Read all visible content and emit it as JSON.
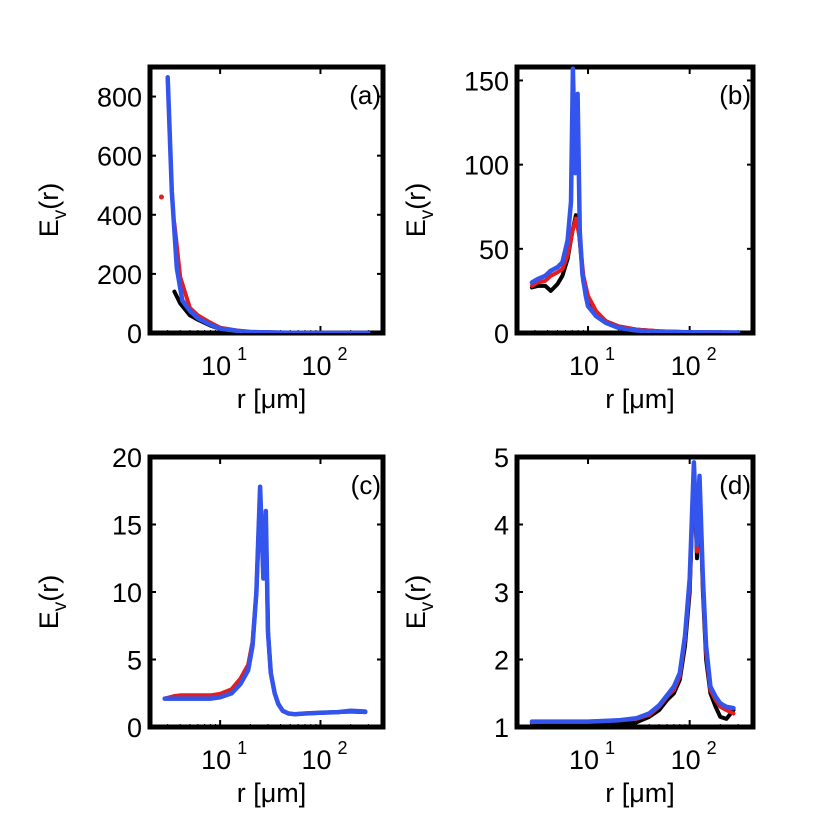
{
  "chart_data": [
    {
      "id": "a",
      "type": "line",
      "panel_label": "(a)",
      "xlabel": "r [μm]",
      "ylabel": "E_v(r)",
      "xscale": "log",
      "xlim": [
        2.0,
        420
      ],
      "ylim": [
        0,
        900
      ],
      "yticks": [
        0,
        200,
        400,
        600,
        800
      ],
      "ytick_labels": [
        "0",
        "200",
        "400",
        "600",
        "800"
      ],
      "xticks": [
        10,
        100
      ],
      "xtick_labels": [
        {
          "base": "10",
          "exp": "1"
        },
        {
          "base": "10",
          "exp": "2"
        }
      ],
      "series": [
        {
          "name": "black",
          "color": "#000000",
          "x": [
            3.5,
            4,
            5,
            6,
            8,
            10,
            15,
            20,
            50,
            100,
            300
          ],
          "y": [
            140,
            100,
            60,
            45,
            25,
            14,
            6,
            3,
            1,
            0.5,
            0.3
          ]
        },
        {
          "name": "red",
          "color": "#e81c1c",
          "x": [
            3.5,
            4,
            5,
            6,
            8,
            10,
            15,
            20,
            50,
            100,
            300
          ],
          "y": [
            370,
            190,
            85,
            60,
            35,
            18,
            8,
            4,
            1,
            0.5,
            0.3
          ]
        },
        {
          "name": "blue",
          "color": "#3355ee",
          "x": [
            3,
            3.3,
            3.7,
            4.2,
            5,
            6,
            8,
            10,
            15,
            20,
            50,
            100,
            300
          ],
          "y": [
            865,
            480,
            220,
            110,
            75,
            50,
            28,
            15,
            7,
            3,
            1,
            0.5,
            0.3
          ]
        }
      ],
      "points": [
        {
          "color": "#e81c1c",
          "x": 2.6,
          "y": 460
        }
      ]
    },
    {
      "id": "b",
      "type": "line",
      "panel_label": "(b)",
      "xlabel": "r [μm]",
      "ylabel": "E_v(r)",
      "xscale": "log",
      "xlim": [
        2.0,
        420
      ],
      "ylim": [
        0,
        158
      ],
      "yticks": [
        0,
        50,
        100,
        150
      ],
      "ytick_labels": [
        "0",
        "50",
        "100",
        "150"
      ],
      "xticks": [
        10,
        100
      ],
      "xtick_labels": [
        {
          "base": "10",
          "exp": "1"
        },
        {
          "base": "10",
          "exp": "2"
        }
      ],
      "series": [
        {
          "name": "black",
          "color": "#000000",
          "x": [
            2.8,
            3.2,
            3.8,
            4.3,
            5,
            5.6,
            6.3,
            7,
            7.6,
            8.2,
            9,
            10,
            12,
            15,
            20,
            30,
            50,
            100,
            300
          ],
          "y": [
            27,
            28,
            28,
            25,
            29,
            34,
            44,
            60,
            70,
            58,
            30,
            20,
            12,
            7,
            4,
            2,
            1,
            0.5,
            0.3
          ]
        },
        {
          "name": "red",
          "color": "#e81c1c",
          "x": [
            2.8,
            3.2,
            3.8,
            4.3,
            5,
            5.6,
            6.3,
            7,
            7.6,
            8.2,
            9,
            10,
            12,
            15,
            20,
            30,
            50,
            100,
            300
          ],
          "y": [
            28,
            30,
            31,
            34,
            36,
            38,
            46,
            60,
            68,
            58,
            34,
            22,
            13,
            7,
            4,
            2,
            1,
            0.5,
            0.3
          ]
        },
        {
          "name": "blue",
          "color": "#3355ee",
          "x": [
            2.8,
            3.2,
            3.8,
            4.3,
            5,
            5.6,
            6.3,
            6.8,
            7.1,
            7.5,
            7.9,
            8.3,
            8.8,
            9.5,
            10,
            12,
            15,
            20,
            30,
            50,
            100,
            300
          ],
          "y": [
            30,
            32,
            34,
            37,
            39,
            42,
            55,
            78,
            157,
            95,
            142,
            60,
            35,
            22,
            16,
            10,
            6,
            3,
            1.5,
            0.8,
            0.4,
            0.3
          ]
        }
      ]
    },
    {
      "id": "c",
      "type": "line",
      "panel_label": "(c)",
      "xlabel": "r [μm]",
      "ylabel": "E_v(r)",
      "xscale": "log",
      "xlim": [
        2.0,
        420
      ],
      "ylim": [
        0,
        20
      ],
      "yticks": [
        0,
        5,
        10,
        15,
        20
      ],
      "ytick_labels": [
        "0",
        "5",
        "10",
        "15",
        "20"
      ],
      "xticks": [
        10,
        100
      ],
      "xtick_labels": [
        {
          "base": "10",
          "exp": "1"
        },
        {
          "base": "10",
          "exp": "2"
        }
      ],
      "series": [
        {
          "name": "black",
          "color": "#000000",
          "x": [
            2.8,
            4,
            6,
            8,
            10,
            13,
            16,
            19,
            21,
            23,
            25,
            27,
            28.5,
            30,
            32,
            35,
            38,
            42,
            48,
            55,
            70,
            100,
            150,
            200,
            280
          ],
          "y": [
            2.1,
            2.1,
            2.1,
            2.1,
            2.2,
            2.5,
            3.2,
            4.2,
            6,
            10,
            17.5,
            11,
            15.8,
            7,
            4,
            2.5,
            1.7,
            1.2,
            1.0,
            0.95,
            1.0,
            1.05,
            1.1,
            1.15,
            1.1
          ]
        },
        {
          "name": "red",
          "color": "#e81c1c",
          "x": [
            2.8,
            3.5,
            4,
            6,
            8,
            10,
            13,
            16,
            19,
            21,
            23,
            25,
            27,
            28.5,
            30,
            32,
            35,
            38,
            42,
            48,
            55,
            70,
            100,
            150,
            200,
            280
          ],
          "y": [
            2.1,
            2.3,
            2.35,
            2.35,
            2.35,
            2.45,
            2.8,
            3.6,
            4.6,
            6.3,
            10,
            17.5,
            11,
            15.8,
            7,
            4,
            2.5,
            1.7,
            1.2,
            1.0,
            0.95,
            1.0,
            1.05,
            1.1,
            1.15,
            1.1
          ]
        },
        {
          "name": "blue",
          "color": "#3355ee",
          "x": [
            2.8,
            4,
            6,
            8,
            10,
            13,
            16,
            19,
            21,
            23,
            25,
            27,
            28.5,
            30,
            32,
            35,
            38,
            42,
            48,
            55,
            70,
            100,
            150,
            200,
            280
          ],
          "y": [
            2.1,
            2.1,
            2.1,
            2.1,
            2.2,
            2.5,
            3.2,
            4.2,
            6,
            10,
            17.8,
            11,
            16.0,
            7,
            4,
            2.5,
            1.7,
            1.2,
            1.0,
            0.95,
            1.0,
            1.05,
            1.1,
            1.2,
            1.15
          ]
        }
      ]
    },
    {
      "id": "d",
      "type": "line",
      "panel_label": "(d)",
      "xlabel": "r [μm]",
      "ylabel": "E_v(r)",
      "xscale": "log",
      "xlim": [
        2.0,
        420
      ],
      "ylim": [
        1,
        5
      ],
      "yticks": [
        1,
        2,
        3,
        4,
        5
      ],
      "ytick_labels": [
        "1",
        "2",
        "3",
        "4",
        "5"
      ],
      "xticks": [
        10,
        100
      ],
      "xtick_labels": [
        {
          "base": "10",
          "exp": "1"
        },
        {
          "base": "10",
          "exp": "2"
        }
      ],
      "series": [
        {
          "name": "black",
          "color": "#000000",
          "x": [
            2.8,
            4,
            6,
            10,
            15,
            20,
            30,
            40,
            50,
            60,
            70,
            80,
            90,
            100,
            110,
            118,
            125,
            135,
            145,
            160,
            180,
            200,
            230,
            270
          ],
          "y": [
            1.05,
            1.05,
            1.05,
            1.05,
            1.05,
            1.05,
            1.07,
            1.15,
            1.25,
            1.4,
            1.5,
            1.7,
            2.2,
            3.0,
            4.8,
            3.5,
            4.6,
            3.0,
            2.0,
            1.5,
            1.3,
            1.15,
            1.12,
            1.25
          ]
        },
        {
          "name": "red",
          "color": "#e81c1c",
          "x": [
            2.8,
            4,
            6,
            10,
            15,
            20,
            30,
            40,
            50,
            60,
            70,
            80,
            90,
            100,
            110,
            118,
            125,
            135,
            145,
            160,
            180,
            200,
            230,
            270
          ],
          "y": [
            1.07,
            1.08,
            1.08,
            1.08,
            1.09,
            1.1,
            1.12,
            1.18,
            1.3,
            1.45,
            1.55,
            1.75,
            2.3,
            3.1,
            4.85,
            3.6,
            4.7,
            3.1,
            2.1,
            1.55,
            1.4,
            1.3,
            1.25,
            1.2
          ]
        },
        {
          "name": "blue",
          "color": "#3355ee",
          "x": [
            2.8,
            4,
            6,
            10,
            15,
            20,
            30,
            40,
            50,
            60,
            70,
            80,
            90,
            100,
            110,
            118,
            125,
            135,
            145,
            160,
            180,
            200,
            230,
            270
          ],
          "y": [
            1.08,
            1.08,
            1.08,
            1.08,
            1.09,
            1.1,
            1.13,
            1.2,
            1.32,
            1.47,
            1.6,
            1.8,
            2.35,
            3.2,
            4.92,
            3.7,
            4.72,
            3.2,
            2.2,
            1.6,
            1.45,
            1.35,
            1.3,
            1.28
          ]
        }
      ]
    }
  ]
}
